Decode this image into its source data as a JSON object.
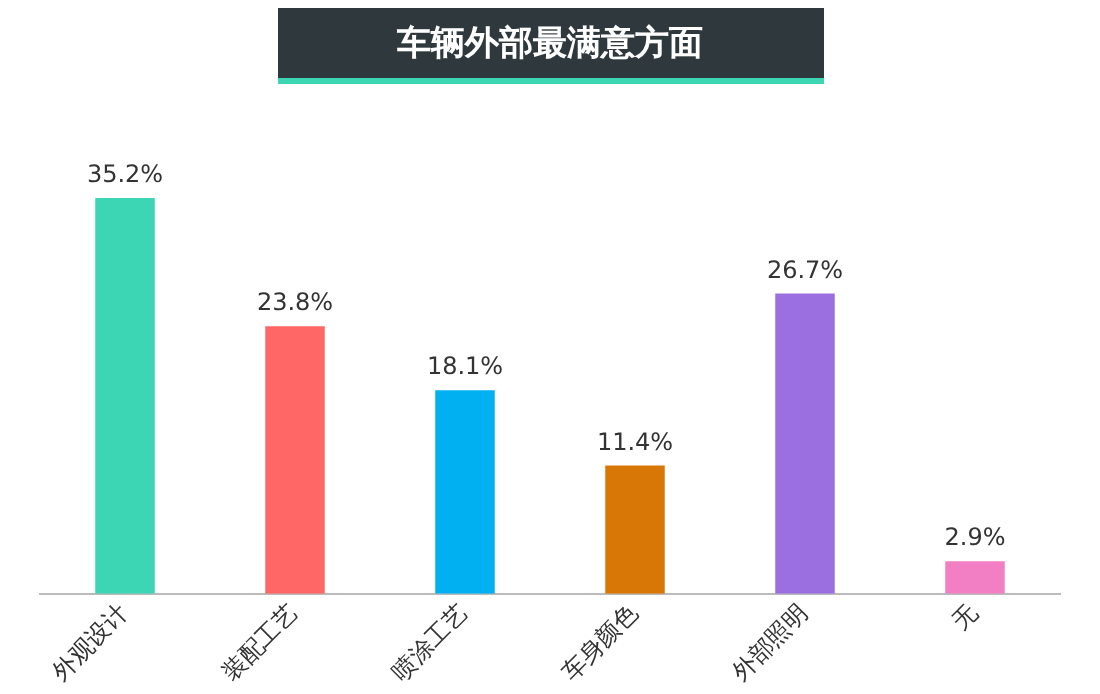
{
  "chart_data": {
    "type": "bar",
    "title": "车辆外部最满意方面",
    "categories": [
      "外观设计",
      "装配工艺",
      "喷涂工艺",
      "车身颜色",
      "外部照明",
      "无"
    ],
    "values": [
      35.2,
      23.8,
      18.1,
      11.4,
      26.7,
      2.9
    ],
    "colors": [
      "#3dd6b5",
      "#ff6767",
      "#00b0f0",
      "#d97706",
      "#9c6fe0",
      "#f27fc3"
    ],
    "value_labels": [
      "35.2%",
      "23.8%",
      "18.1%",
      "11.4%",
      "26.7%",
      "2.9%"
    ],
    "legend": false,
    "grid": false
  }
}
